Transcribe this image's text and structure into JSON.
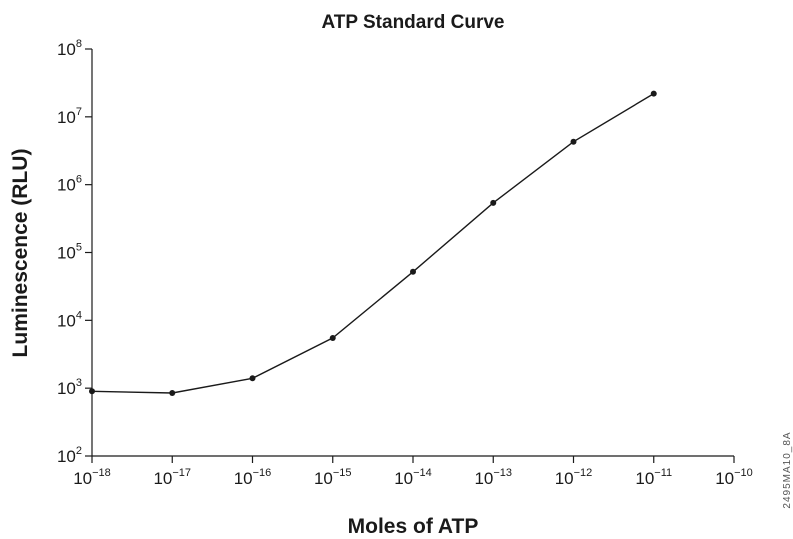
{
  "chart_data": {
    "type": "line",
    "title": "ATP Standard Curve",
    "xlabel": "Moles of ATP",
    "ylabel": "Luminescence (RLU)",
    "x_scale": "log",
    "y_scale": "log",
    "xlim": [
      1e-18,
      1e-10
    ],
    "ylim": [
      100,
      100000000
    ],
    "x_ticks": [
      {
        "base": "10",
        "exp": "−18"
      },
      {
        "base": "10",
        "exp": "−17"
      },
      {
        "base": "10",
        "exp": "−16"
      },
      {
        "base": "10",
        "exp": "−15"
      },
      {
        "base": "10",
        "exp": "−14"
      },
      {
        "base": "10",
        "exp": "−13"
      },
      {
        "base": "10",
        "exp": "−12"
      },
      {
        "base": "10",
        "exp": "−11"
      },
      {
        "base": "10",
        "exp": "−10"
      }
    ],
    "y_ticks": [
      {
        "base": "10",
        "exp": "2"
      },
      {
        "base": "10",
        "exp": "3"
      },
      {
        "base": "10",
        "exp": "4"
      },
      {
        "base": "10",
        "exp": "5"
      },
      {
        "base": "10",
        "exp": "6"
      },
      {
        "base": "10",
        "exp": "7"
      },
      {
        "base": "10",
        "exp": "8"
      }
    ],
    "grid": false,
    "legend": "none",
    "series": [
      {
        "x": [
          1e-18,
          1e-17,
          1e-16,
          1e-15,
          1e-14,
          1e-13,
          1e-12,
          1e-11
        ],
        "y": [
          900,
          850,
          1400,
          5500,
          52000,
          540000,
          4300000,
          22000000
        ]
      }
    ],
    "figure_id": "2495MA10_8A",
    "colors": {
      "line": "#1a1a1a",
      "text": "#1a1a1a"
    }
  }
}
